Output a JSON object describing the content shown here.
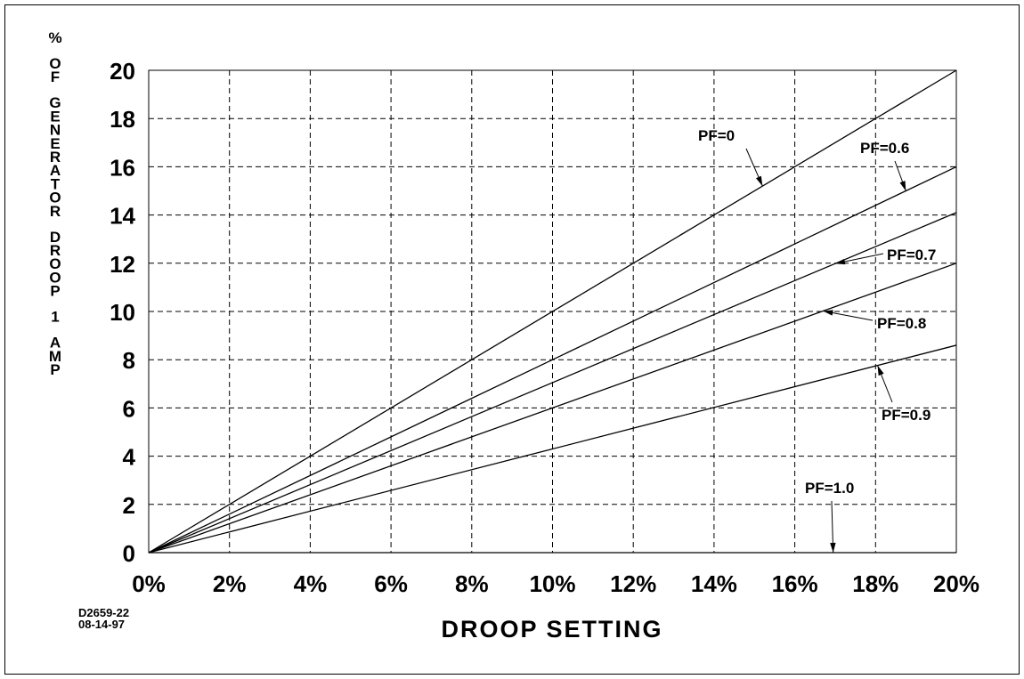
{
  "chart_data": {
    "type": "line",
    "xlabel": "DROOP SETTING",
    "ylabel": "% OF GENERATOR DROOP 1 AMP",
    "ylabel_lines": [
      "%",
      "OF",
      "GENERATOR",
      "DROOP",
      "1",
      "AMP"
    ],
    "xlim": [
      0,
      20
    ],
    "ylim": [
      0,
      20
    ],
    "grid": true,
    "x_ticks": [
      0,
      2,
      4,
      6,
      8,
      10,
      12,
      14,
      16,
      18,
      20
    ],
    "x_tick_labels": [
      "0%",
      "2%",
      "4%",
      "6%",
      "8%",
      "10%",
      "12%",
      "14%",
      "16%",
      "18%",
      "20%"
    ],
    "y_ticks": [
      0,
      2,
      4,
      6,
      8,
      10,
      12,
      14,
      16,
      18,
      20
    ],
    "y_tick_labels": [
      "0",
      "2",
      "4",
      "6",
      "8",
      "10",
      "12",
      "14",
      "16",
      "18",
      "20"
    ],
    "series": [
      {
        "name": "PF=0",
        "x": [
          0,
          20
        ],
        "y": [
          0,
          20
        ]
      },
      {
        "name": "PF=0.6",
        "x": [
          0,
          20
        ],
        "y": [
          0,
          16
        ]
      },
      {
        "name": "PF=0.7",
        "x": [
          0,
          20
        ],
        "y": [
          0,
          14.1
        ]
      },
      {
        "name": "PF=0.8",
        "x": [
          0,
          20
        ],
        "y": [
          0,
          12
        ]
      },
      {
        "name": "PF=0.9",
        "x": [
          0,
          20
        ],
        "y": [
          0,
          8.6
        ]
      },
      {
        "name": "PF=1.0",
        "x": [
          0,
          20
        ],
        "y": [
          0,
          0
        ]
      }
    ],
    "annotations": [
      {
        "text": "PF=0",
        "series": 0
      },
      {
        "text": "PF=0.6",
        "series": 1
      },
      {
        "text": "PF=0.7",
        "series": 2
      },
      {
        "text": "PF=0.8",
        "series": 3
      },
      {
        "text": "PF=0.9",
        "series": 4
      },
      {
        "text": "PF=1.0",
        "series": 5
      }
    ],
    "drawing_id": [
      "D2659-22",
      "08-14-97"
    ]
  }
}
